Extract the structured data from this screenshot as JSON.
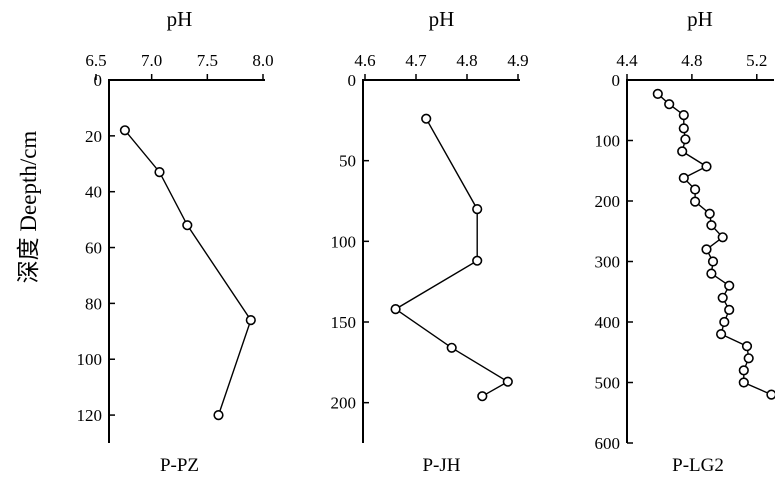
{
  "figure": {
    "y_axis_title": "深度 Deepth/cm"
  },
  "chart_data": [
    {
      "type": "line",
      "title": "P-PZ",
      "xlabel": "pH",
      "ylabel": "深度 Deepth/cm",
      "x_axis_position": "top",
      "y_inverted": true,
      "xlim": [
        6.5,
        8.0
      ],
      "ylim": [
        0,
        130
      ],
      "x_ticks": [
        6.5,
        7.0,
        7.5,
        8.0
      ],
      "x_tick_labels": [
        "6.5",
        "7.0",
        "7.5",
        "8.0"
      ],
      "y_ticks": [
        0,
        20,
        40,
        60,
        80,
        100,
        120
      ],
      "y_tick_labels": [
        "0",
        "20",
        "40",
        "60",
        "80",
        "100",
        "120"
      ],
      "grid": false,
      "marker": "open-circle",
      "series": [
        {
          "x": [
            6.76,
            7.07,
            7.32,
            7.89,
            7.6
          ],
          "y": [
            18,
            33,
            52,
            86,
            120
          ]
        }
      ]
    },
    {
      "type": "line",
      "title": "P-JH",
      "xlabel": "pH",
      "ylabel": "",
      "x_axis_position": "top",
      "y_inverted": true,
      "xlim": [
        4.6,
        4.9
      ],
      "ylim": [
        0,
        225
      ],
      "x_ticks": [
        4.6,
        4.7,
        4.8,
        4.9
      ],
      "x_tick_labels": [
        "4.6",
        "4.7",
        "4.8",
        "4.9"
      ],
      "y_ticks": [
        0,
        50,
        100,
        150,
        200
      ],
      "y_tick_labels": [
        "0",
        "50",
        "100",
        "150",
        "200"
      ],
      "grid": false,
      "marker": "open-circle",
      "series": [
        {
          "x": [
            4.72,
            4.82,
            4.82,
            4.66,
            4.77,
            4.88,
            4.83
          ],
          "y": [
            24,
            80,
            112,
            142,
            166,
            187,
            196
          ]
        }
      ]
    },
    {
      "type": "line",
      "title": "P-LG2",
      "xlabel": "pH",
      "ylabel": "",
      "x_axis_position": "top",
      "y_inverted": true,
      "xlim": [
        4.4,
        5.3
      ],
      "ylim": [
        0,
        600
      ],
      "x_ticks": [
        4.4,
        4.8,
        5.2
      ],
      "x_tick_labels": [
        "4.4",
        "4.8",
        "5.2"
      ],
      "y_ticks": [
        0,
        100,
        200,
        300,
        400,
        500,
        600
      ],
      "y_tick_labels": [
        "0",
        "100",
        "200",
        "300",
        "400",
        "500",
        "600"
      ],
      "grid": false,
      "marker": "open-circle",
      "series": [
        {
          "x": [
            4.59,
            4.66,
            4.75,
            4.75,
            4.76,
            4.74,
            4.89,
            4.75,
            4.82,
            4.82,
            4.91,
            4.92,
            4.99,
            4.89,
            4.93,
            4.92,
            5.03,
            4.99,
            5.03,
            5.0,
            4.98,
            5.14,
            5.15,
            5.12,
            5.12,
            5.29
          ],
          "y": [
            23,
            40,
            58,
            80,
            98,
            118,
            143,
            162,
            181,
            201,
            221,
            240,
            260,
            280,
            300,
            320,
            340,
            360,
            380,
            400,
            420,
            440,
            460,
            480,
            500,
            520
          ]
        }
      ]
    }
  ]
}
